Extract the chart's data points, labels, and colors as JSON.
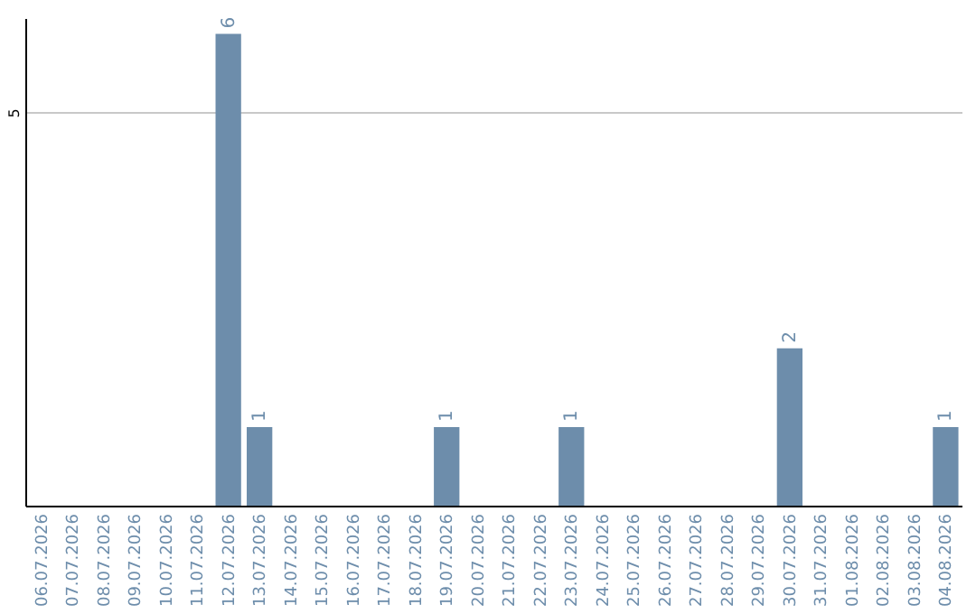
{
  "chart_data": {
    "type": "bar",
    "categories": [
      "06.07.2026",
      "07.07.2026",
      "08.07.2026",
      "09.07.2026",
      "10.07.2026",
      "11.07.2026",
      "12.07.2026",
      "13.07.2026",
      "14.07.2026",
      "15.07.2026",
      "16.07.2026",
      "17.07.2026",
      "18.07.2026",
      "19.07.2026",
      "20.07.2026",
      "21.07.2026",
      "22.07.2026",
      "23.07.2026",
      "24.07.2026",
      "25.07.2026",
      "26.07.2026",
      "27.07.2026",
      "28.07.2026",
      "29.07.2026",
      "30.07.2026",
      "31.07.2026",
      "01.08.2026",
      "02.08.2026",
      "03.08.2026",
      "04.08.2026"
    ],
    "values": [
      null,
      null,
      null,
      null,
      null,
      null,
      6,
      1,
      null,
      null,
      null,
      null,
      null,
      1,
      null,
      null,
      null,
      1,
      null,
      null,
      null,
      null,
      null,
      null,
      2,
      null,
      null,
      null,
      null,
      1
    ],
    "color": "#6d8dab",
    "ylim": [
      0,
      6.2
    ],
    "yticks": [
      5
    ],
    "grid": "y",
    "data_labels": true
  }
}
